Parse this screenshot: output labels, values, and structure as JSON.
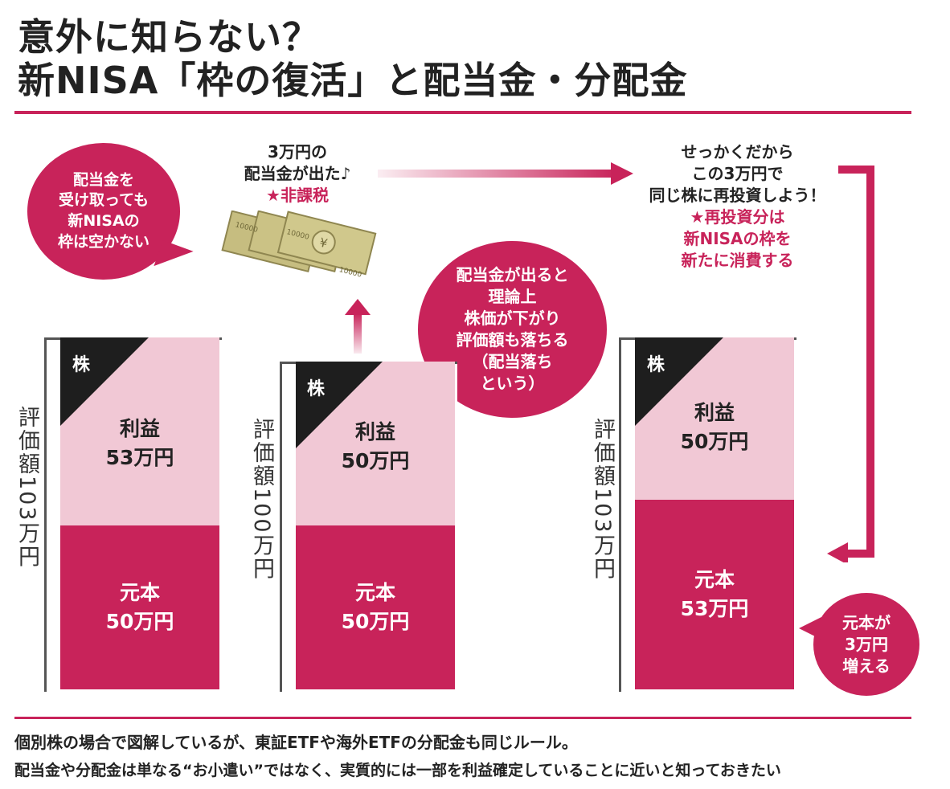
{
  "title": {
    "line1": "意外に知らない？",
    "line2": "新NISA「枠の復活」と配当金・分配金"
  },
  "bubbles": {
    "left": [
      "配当金を",
      "受け取っても",
      "新NISAの",
      "枠は空かない"
    ],
    "middle": [
      "配当金が出ると",
      "理論上",
      "株価が下がり",
      "評価額も落ちる",
      "（配当落ち",
      "という）"
    ],
    "bottom_right": [
      "元本が",
      "3万円",
      "増える"
    ]
  },
  "captions": {
    "dividend": [
      "3万円の",
      "配当金が出た♪"
    ],
    "dividend_note": "★非課税",
    "reinvest": [
      "せっかくだから",
      "この3万円で",
      "同じ株に再投資しよう！"
    ],
    "reinvest_note": [
      "★再投資分は",
      "新NISAの枠を",
      "新たに消費する"
    ]
  },
  "bars": [
    {
      "stock_label": "株",
      "valuation": "評価額103万円",
      "profit": [
        "利益",
        "53万円"
      ],
      "principal": [
        "元本",
        "50万円"
      ]
    },
    {
      "stock_label": "株",
      "valuation": "評価額100万円",
      "profit": [
        "利益",
        "50万円"
      ],
      "principal": [
        "元本",
        "50万円"
      ]
    },
    {
      "stock_label": "株",
      "valuation": "評価額103万円",
      "profit": [
        "利益",
        "50万円"
      ],
      "principal": [
        "元本",
        "53万円"
      ]
    }
  ],
  "banknote": "10000",
  "footer": {
    "line1": "個別株の場合で図解しているが、東証ETFや海外ETFの分配金も同じルール。",
    "line2": "配当金や分配金は単なる“お小遣い”ではなく、実質的には一部を利益確定していることに近いと知っておきたい"
  },
  "colors": {
    "accent": "#c8235a",
    "profit": "#f1c8d5",
    "note": "#c6bd80"
  }
}
